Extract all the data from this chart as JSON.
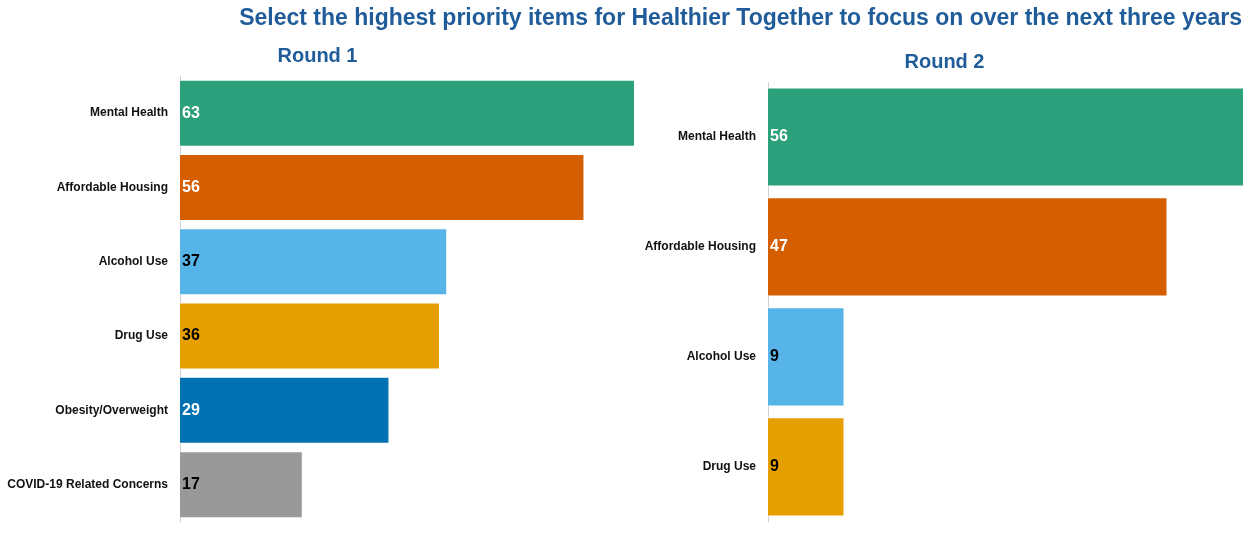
{
  "chart_data": [
    {
      "type": "other",
      "title": "Select the highest priority items for Healthier Together to focus on over the next three years"
    },
    {
      "type": "bar",
      "orientation": "horizontal",
      "title": "Round 1",
      "categories": [
        "Mental Health",
        "Affordable Housing",
        "Alcohol Use",
        "Drug Use",
        "Obesity/Overweight",
        "COVID-19 Related Concerns"
      ],
      "values": [
        63,
        56,
        37,
        36,
        29,
        17
      ],
      "colors": [
        "#2ca07a",
        "#d55e00",
        "#56b4e9",
        "#e69f00",
        "#0072b2",
        "#999999"
      ],
      "data_labels": true,
      "legend": false,
      "tick_labels": "y"
    },
    {
      "type": "bar",
      "orientation": "horizontal",
      "title": "Round 2",
      "categories": [
        "Mental Health",
        "Affordable Housing",
        "Alcohol Use",
        "Drug Use"
      ],
      "values": [
        56,
        47,
        9,
        9
      ],
      "colors": [
        "#2ca07a",
        "#d55e00",
        "#56b4e9",
        "#e69f00"
      ],
      "data_labels": true,
      "legend": false,
      "tick_labels": "y"
    }
  ]
}
